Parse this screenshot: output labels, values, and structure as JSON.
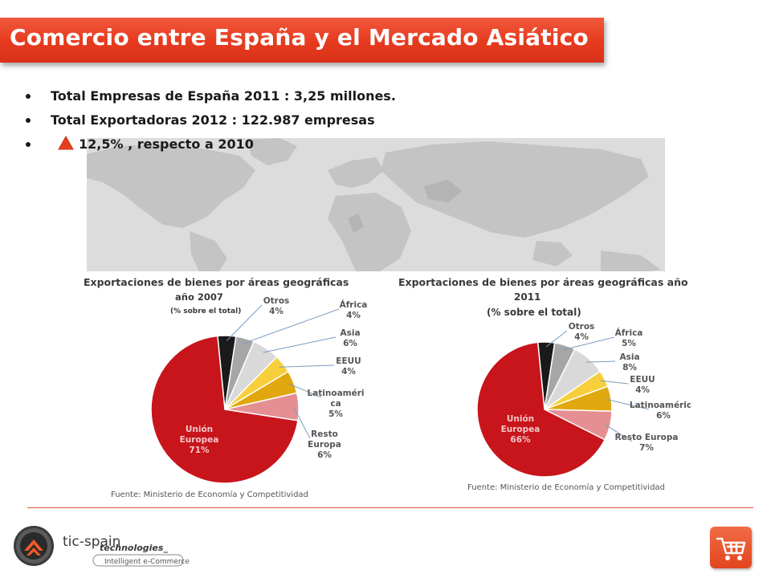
{
  "slide": {
    "title": "Comercio entre España y el Mercado Asiático",
    "bullets": [
      {
        "text": "Total Empresas de España 2011 : 3,25 millones."
      },
      {
        "text": "Total Exportadoras 2012 : 122.987 empresas"
      },
      {
        "text": "12,5% , respecto a 2010",
        "icon": "up-triangle-icon"
      }
    ],
    "logo": {
      "brand_part1": "tic-spain",
      "brand_part2": "technologies_",
      "tagline": "Intelligent e-Commerce"
    },
    "colors": {
      "accent": "#e63a1e",
      "eu": "#c8141b",
      "resto": "#e58f93",
      "latam": "#e0a80e",
      "eeuu": "#f7cf3a",
      "asia": "#d9d9d9",
      "africa": "#a6a6a6",
      "otros": "#1a1a1a"
    }
  },
  "chart_data": [
    {
      "type": "pie",
      "title_lines": [
        "Exportaciones de bienes por áreas geográficas",
        "año 2007"
      ],
      "subtitle": "(% sobre el total)",
      "source": "Fuente: Ministerio de Economía y Competitividad",
      "slices": [
        {
          "name": "Otros",
          "value": 4,
          "label_lines": [
            "Otros",
            "4%"
          ],
          "color": "#1a1a1a"
        },
        {
          "name": "África",
          "value": 4,
          "label_lines": [
            "África",
            "4%"
          ],
          "color": "#a6a6a6"
        },
        {
          "name": "Asia",
          "value": 6,
          "label_lines": [
            "Asia",
            "6%"
          ],
          "color": "#d9d9d9"
        },
        {
          "name": "EEUU",
          "value": 4,
          "label_lines": [
            "EEUU",
            "4%"
          ],
          "color": "#f7cf3a"
        },
        {
          "name": "Latinoamérica",
          "value": 5,
          "label_lines": [
            "Latinoaméri",
            "ca",
            "5%"
          ],
          "color": "#e0a80e"
        },
        {
          "name": "Resto Europa",
          "value": 6,
          "label_lines": [
            "Resto",
            "Europa",
            "6%"
          ],
          "color": "#e58f93"
        },
        {
          "name": "Unión Europea",
          "value": 71,
          "label_lines": [
            "Unión",
            "Europea",
            "71%"
          ],
          "color": "#c8141b"
        }
      ]
    },
    {
      "type": "pie",
      "title_lines": [
        "Exportaciones de bienes por áreas geográficas año",
        "2011",
        "(% sobre el total)"
      ],
      "subtitle": "",
      "source": "Fuente: Ministerio de Economía y Competitividad",
      "slices": [
        {
          "name": "Otros",
          "value": 4,
          "label_lines": [
            "Otros",
            "4%"
          ],
          "color": "#1a1a1a"
        },
        {
          "name": "África",
          "value": 5,
          "label_lines": [
            "África",
            "5%"
          ],
          "color": "#a6a6a6"
        },
        {
          "name": "Asia",
          "value": 8,
          "label_lines": [
            "Asia",
            "8%"
          ],
          "color": "#d9d9d9"
        },
        {
          "name": "EEUU",
          "value": 4,
          "label_lines": [
            "EEUU",
            "4%"
          ],
          "color": "#f7cf3a"
        },
        {
          "name": "Latinoamérica",
          "value": 6,
          "label_lines": [
            "Latinoamérica",
            "6%"
          ],
          "color": "#e0a80e"
        },
        {
          "name": "Resto Europa",
          "value": 7,
          "label_lines": [
            "Resto Europa",
            "7%"
          ],
          "color": "#e58f93"
        },
        {
          "name": "Unión Europea",
          "value": 66,
          "label_lines": [
            "Unión",
            "Europea",
            "66%"
          ],
          "color": "#c8141b"
        }
      ]
    }
  ]
}
